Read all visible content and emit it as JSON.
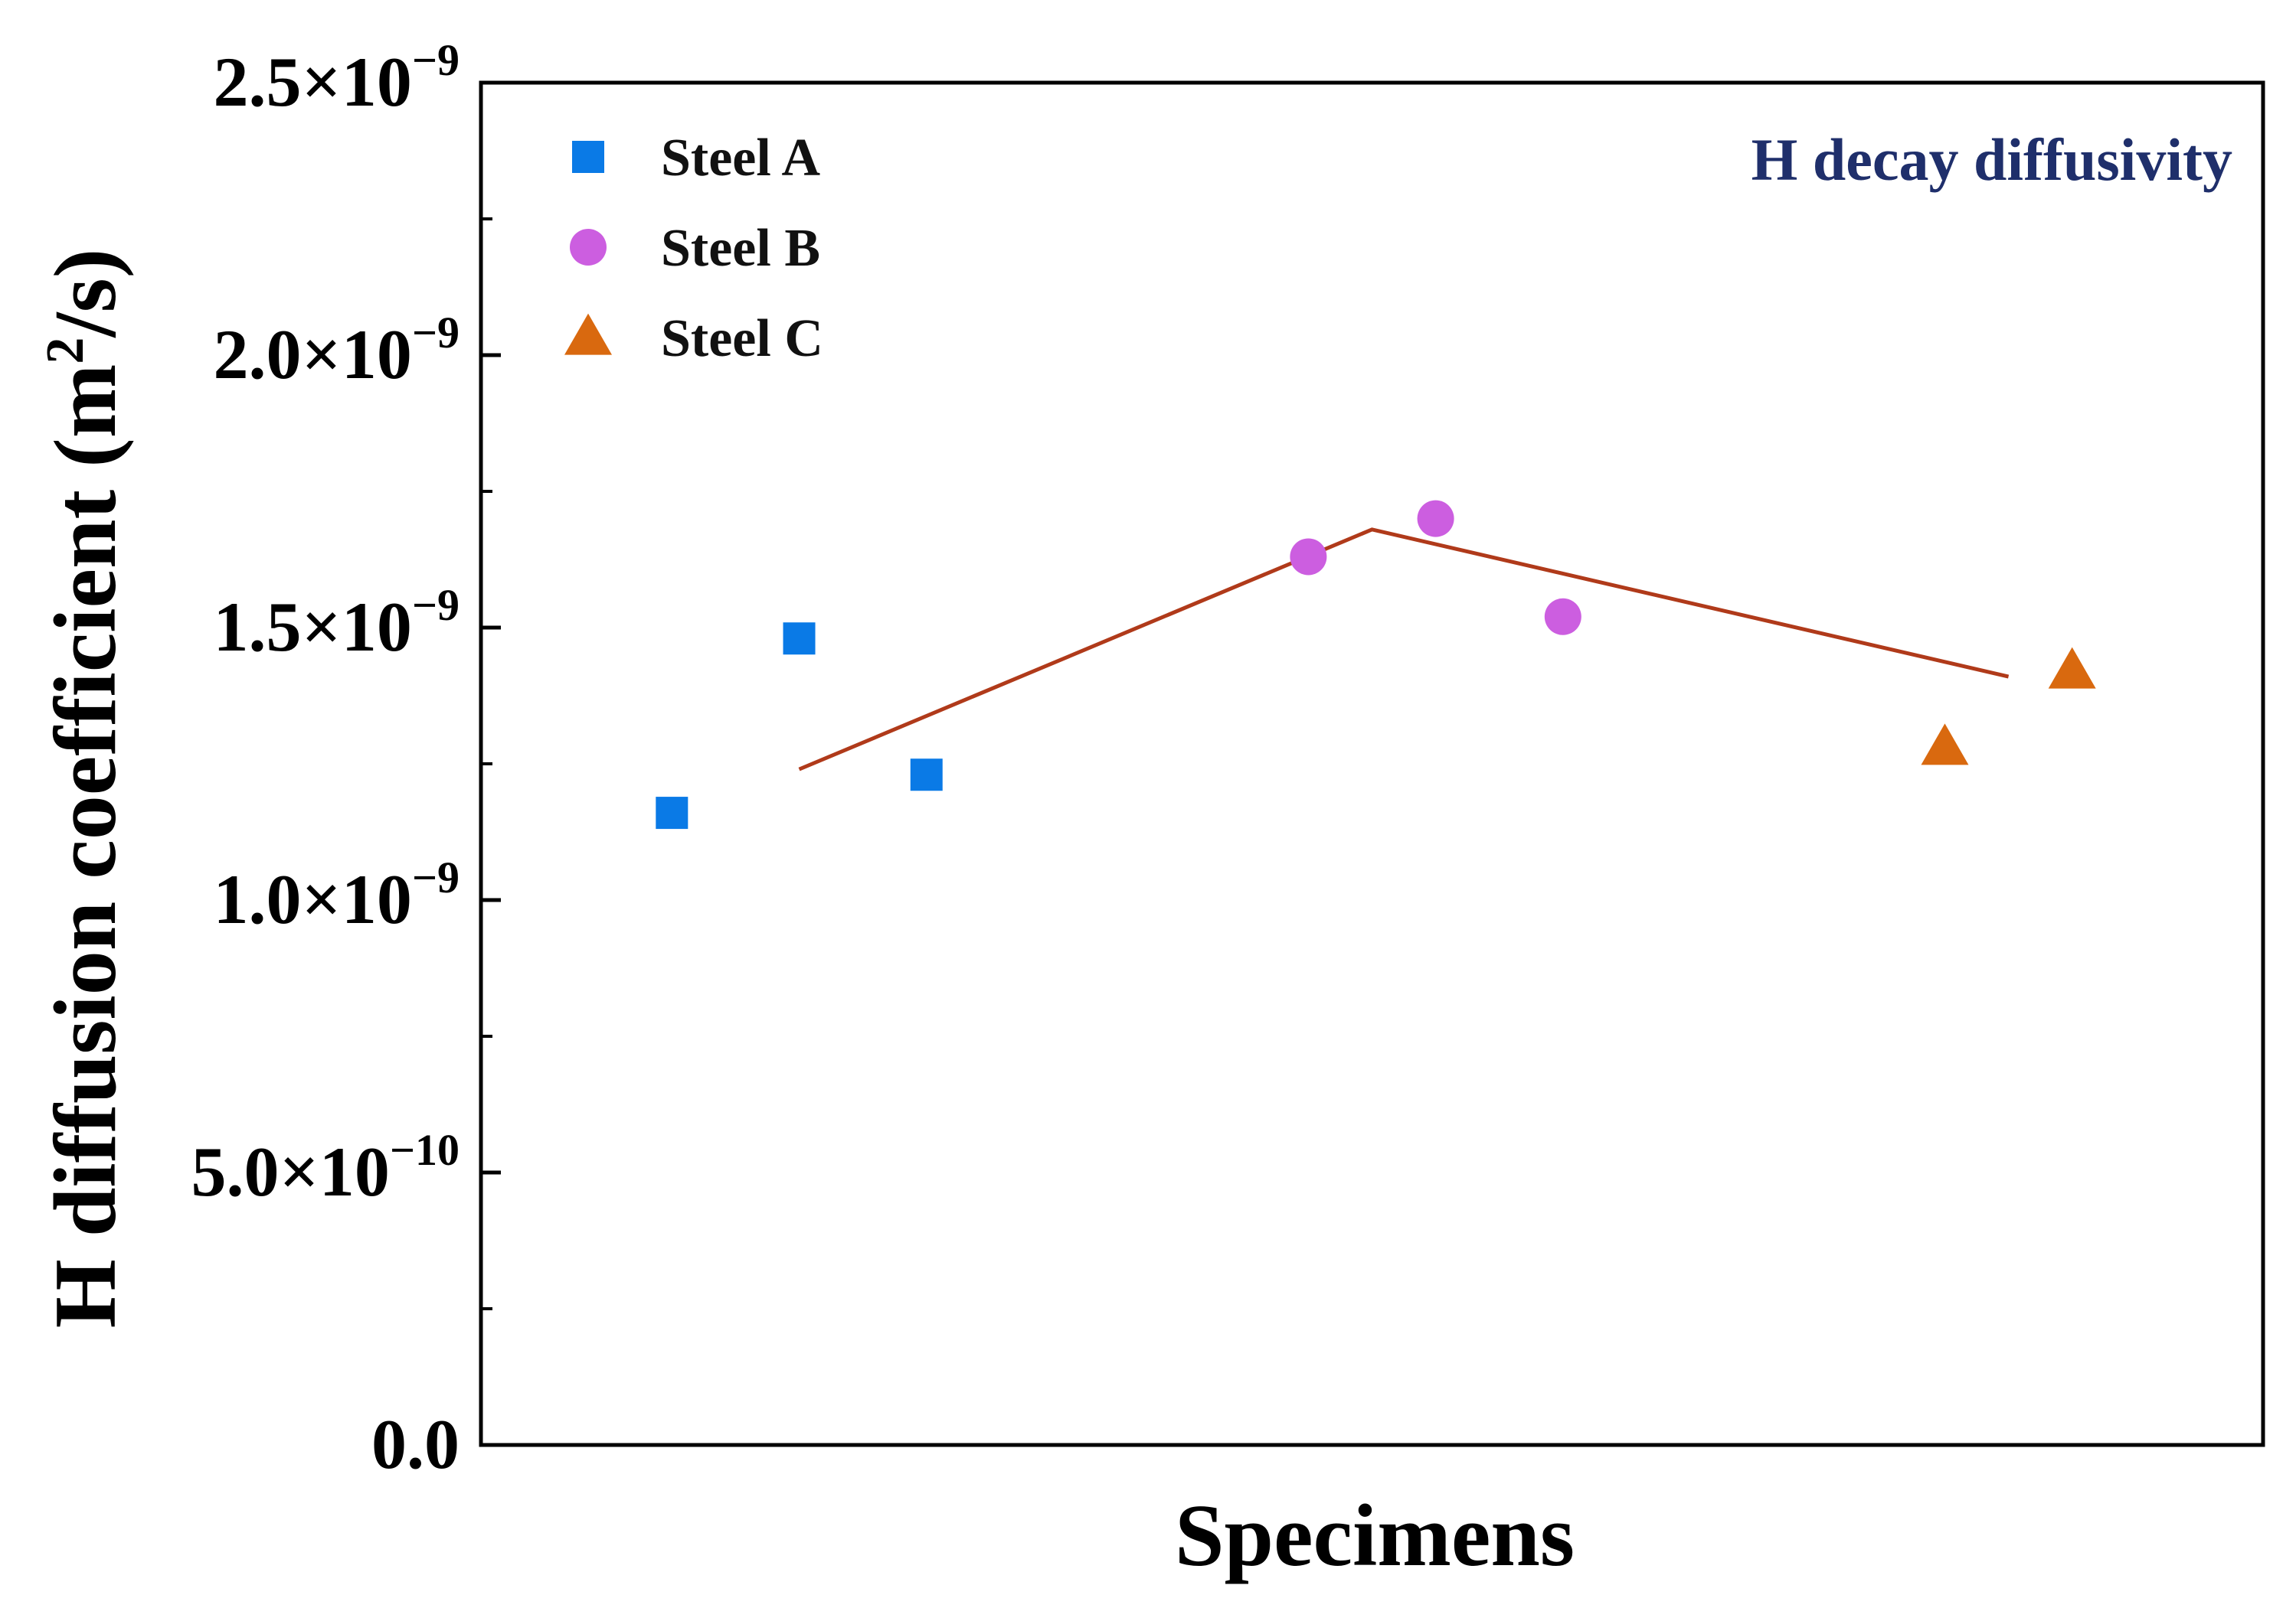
{
  "chart_data": {
    "type": "scatter",
    "title": "",
    "xlabel": "Specimens",
    "ylabel": "H diffusion coefficient (m²/s)",
    "ylabel_parts": {
      "main": "H diffusion coefficient (m",
      "sup": "2",
      "tail": "/s)"
    },
    "annotation": {
      "text": "H decay diffusivity",
      "color": "#1f2f6b"
    },
    "ylim": [
      0,
      2.5e-09
    ],
    "xlim": [
      0,
      14
    ],
    "y_ticks": [
      {
        "value": 0,
        "mantissa": "0.0",
        "exp": ""
      },
      {
        "value": 5e-10,
        "mantissa": "5.0×10",
        "exp": "−10"
      },
      {
        "value": 1e-09,
        "mantissa": "1.0×10",
        "exp": "−9"
      },
      {
        "value": 1.5e-09,
        "mantissa": "1.5×10",
        "exp": "−9"
      },
      {
        "value": 2e-09,
        "mantissa": "2.0×10",
        "exp": "−9"
      },
      {
        "value": 2.5e-09,
        "mantissa": "2.5×10",
        "exp": "−9"
      }
    ],
    "y_minor_ticks": [
      2.5e-10,
      7.5e-10,
      1.25e-09,
      1.75e-09,
      2.25e-09
    ],
    "series": [
      {
        "name": "Steel A",
        "marker": "square",
        "color": "#0a7ae6",
        "points": [
          {
            "x": 1.5,
            "y": 1.16e-09
          },
          {
            "x": 2.5,
            "y": 1.48e-09
          },
          {
            "x": 3.5,
            "y": 1.23e-09
          }
        ]
      },
      {
        "name": "Steel B",
        "marker": "circle",
        "color": "#cc5ee0",
        "points": [
          {
            "x": 6.5,
            "y": 1.63e-09
          },
          {
            "x": 7.5,
            "y": 1.7e-09
          },
          {
            "x": 8.5,
            "y": 1.52e-09
          }
        ]
      },
      {
        "name": "Steel C",
        "marker": "triangle",
        "color": "#d9690f",
        "points": [
          {
            "x": 11.5,
            "y": 1.28e-09
          },
          {
            "x": 12.5,
            "y": 1.42e-09
          }
        ]
      }
    ],
    "trend_line": {
      "color": "#b03a1a",
      "points": [
        {
          "x": 2.5,
          "y": 1.24e-09
        },
        {
          "x": 7.0,
          "y": 1.68e-09
        },
        {
          "x": 12.0,
          "y": 1.41e-09
        }
      ]
    },
    "legend": {
      "placement": "top-left"
    }
  }
}
